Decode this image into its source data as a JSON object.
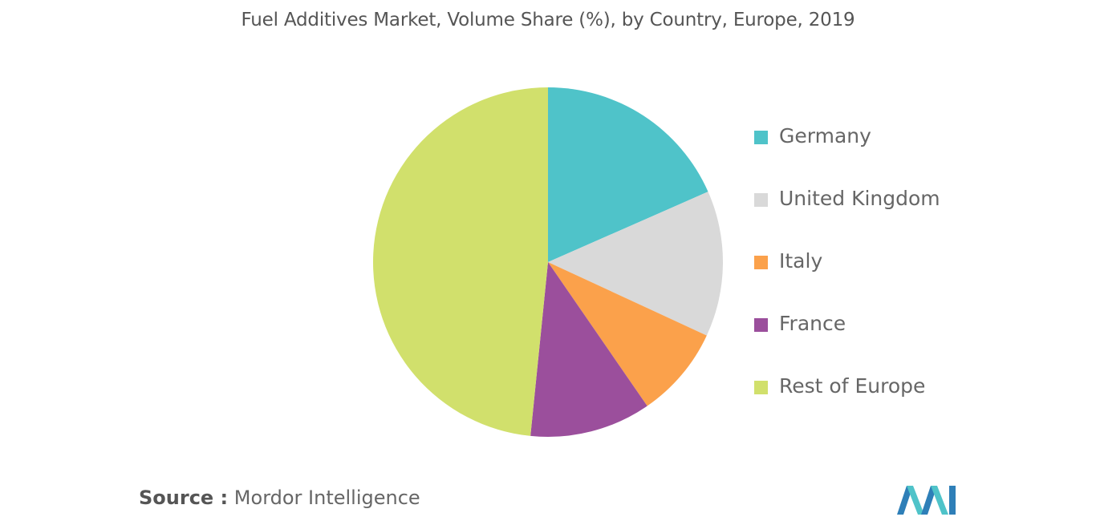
{
  "title": "Fuel Additives Market, Volume Share (%), by Country, Europe, 2019",
  "source": {
    "key": "Source :",
    "value": "Mordor Intelligence"
  },
  "chart_data": {
    "type": "pie",
    "title": "Fuel Additives Market, Volume Share (%), by Country, Europe, 2019",
    "legend_position": "right",
    "start_angle": "12 o'clock",
    "direction": "clockwise",
    "slices": [
      {
        "name": "Germany",
        "value": 18.4,
        "color": "#4FC3C9"
      },
      {
        "name": "United Kingdom",
        "value": 13.5,
        "color": "#D9D9D9"
      },
      {
        "name": "Italy",
        "value": 8.5,
        "color": "#FBA14B"
      },
      {
        "name": "France",
        "value": 11.2,
        "color": "#9B4F9C"
      },
      {
        "name": "Rest of Europe",
        "value": 48.4,
        "color": "#D1E06C"
      }
    ]
  },
  "logo": {
    "icon": "mordor-intelligence-logo",
    "colors": [
      "#2E7FB8",
      "#4FC3C9"
    ]
  }
}
